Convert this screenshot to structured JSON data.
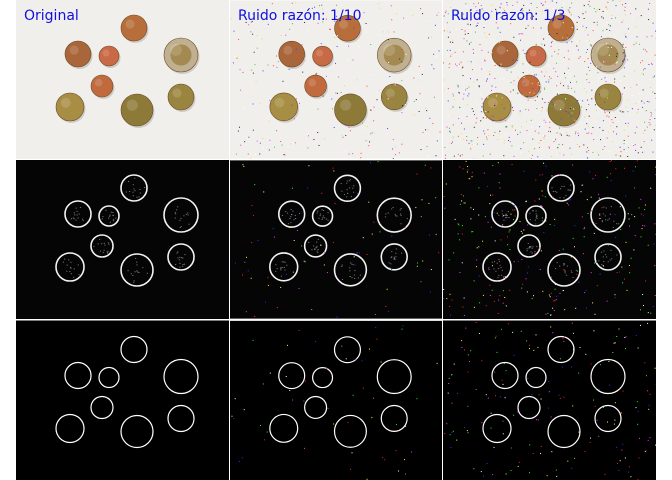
{
  "panels": [
    {
      "label": "Original",
      "kind": "photo",
      "noise": 0
    },
    {
      "label": "Ruido razón: 1/10",
      "kind": "photo",
      "noise": 0.1
    },
    {
      "label": "Ruido razón: 1/3",
      "kind": "photo",
      "noise": 0.33
    },
    {
      "label": "",
      "kind": "edges",
      "noise": 0
    },
    {
      "label": "",
      "kind": "edges",
      "noise": 0.1
    },
    {
      "label": "",
      "kind": "edges",
      "noise": 0.33
    },
    {
      "label": "",
      "kind": "circles",
      "noise": 0
    },
    {
      "label": "",
      "kind": "circles",
      "noise": 0.1
    },
    {
      "label": "",
      "kind": "circles",
      "noise": 0.33
    }
  ],
  "colors": {
    "label_text": "#1010e0",
    "background_paper": "#f1efeb",
    "edge_background": "#050505",
    "circle_background": "#000000",
    "circle_outline": "#ffffff",
    "separator": "#ffffff"
  },
  "coins": [
    {
      "name": "copper-coin-1",
      "color": "#b86e3a"
    },
    {
      "name": "copper-coin-2",
      "color": "#a8663a"
    },
    {
      "name": "copper-coin-3",
      "color": "#c86a45"
    },
    {
      "name": "bimetal-coin",
      "color": "#c0b090"
    },
    {
      "name": "copper-coin-4",
      "color": "#c06a3e"
    },
    {
      "name": "gold-coin-1",
      "color": "#a88e44"
    },
    {
      "name": "gold-coin-2",
      "color": "#8e7a38"
    },
    {
      "name": "gold-coin-3",
      "color": "#9a8540"
    }
  ]
}
